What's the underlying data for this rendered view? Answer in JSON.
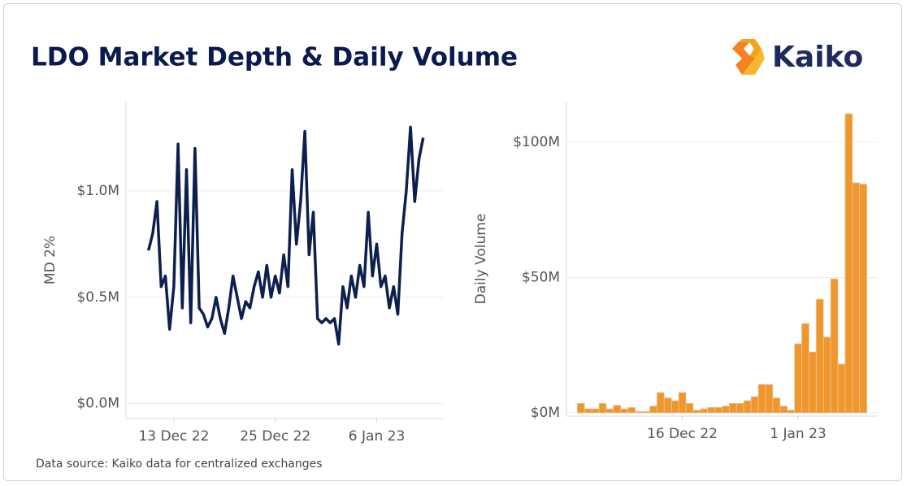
{
  "title": "LDO Market Depth & Daily Volume",
  "logo": "Kaiko",
  "source": "Data source: Kaiko data for centralized exchanges",
  "chart_data": [
    {
      "type": "line",
      "y_label": "MD 2%",
      "color": "#0d1f4f",
      "x": [
        "2022-12-10 00:00",
        "2022-12-10 12:00",
        "2022-12-11 00:00",
        "2022-12-11 12:00",
        "2022-12-12 00:00",
        "2022-12-12 12:00",
        "2022-12-13 00:00",
        "2022-12-13 12:00",
        "2022-12-14 00:00",
        "2022-12-14 12:00",
        "2022-12-15 00:00",
        "2022-12-15 12:00",
        "2022-12-16 00:00",
        "2022-12-16 12:00",
        "2022-12-17 00:00",
        "2022-12-17 12:00",
        "2022-12-18 00:00",
        "2022-12-18 12:00",
        "2022-12-19 00:00",
        "2022-12-19 12:00",
        "2022-12-20 00:00",
        "2022-12-20 12:00",
        "2022-12-21 00:00",
        "2022-12-21 12:00",
        "2022-12-22 00:00",
        "2022-12-22 12:00",
        "2022-12-23 00:00",
        "2022-12-23 12:00",
        "2022-12-24 00:00",
        "2022-12-24 12:00",
        "2022-12-25 00:00",
        "2022-12-25 12:00",
        "2022-12-26 00:00",
        "2022-12-26 12:00",
        "2022-12-27 00:00",
        "2022-12-27 12:00",
        "2022-12-28 00:00",
        "2022-12-28 12:00",
        "2022-12-29 00:00",
        "2022-12-29 12:00",
        "2022-12-30 00:00",
        "2022-12-30 12:00",
        "2022-12-31 00:00",
        "2022-12-31 12:00",
        "2023-01-01 00:00",
        "2023-01-01 12:00",
        "2023-01-02 00:00",
        "2023-01-02 12:00",
        "2023-01-03 00:00",
        "2023-01-03 12:00",
        "2023-01-04 00:00",
        "2023-01-04 12:00",
        "2023-01-05 00:00",
        "2023-01-05 12:00",
        "2023-01-06 00:00",
        "2023-01-06 12:00",
        "2023-01-07 00:00",
        "2023-01-07 12:00",
        "2023-01-08 00:00",
        "2023-01-08 12:00",
        "2023-01-09 00:00",
        "2023-01-09 12:00",
        "2023-01-10 00:00",
        "2023-01-10 12:00",
        "2023-01-11 00:00",
        "2023-01-11 12:00"
      ],
      "values": [
        0.72,
        0.8,
        0.95,
        0.55,
        0.6,
        0.35,
        0.55,
        1.22,
        0.45,
        1.1,
        0.38,
        1.2,
        0.45,
        0.42,
        0.36,
        0.4,
        0.5,
        0.4,
        0.33,
        0.45,
        0.6,
        0.5,
        0.4,
        0.48,
        0.45,
        0.55,
        0.62,
        0.5,
        0.65,
        0.5,
        0.6,
        0.52,
        0.7,
        0.55,
        1.1,
        0.75,
        0.95,
        1.28,
        0.7,
        0.9,
        0.4,
        0.38,
        0.4,
        0.38,
        0.4,
        0.28,
        0.55,
        0.45,
        0.6,
        0.5,
        0.65,
        0.55,
        0.9,
        0.6,
        0.75,
        0.55,
        0.6,
        0.45,
        0.55,
        0.42,
        0.8,
        1.0,
        1.3,
        0.95,
        1.15,
        1.25
      ],
      "xlim": [
        "2022-12-07 08:00",
        "2023-01-13 20:00"
      ],
      "xticks": [
        {
          "value": "2022-12-13 00:00",
          "label": "13 Dec 22"
        },
        {
          "value": "2022-12-25 00:00",
          "label": "25 Dec 22"
        },
        {
          "value": "2023-01-06 00:00",
          "label": "6 Jan 23"
        }
      ],
      "ylim": [
        -0.07,
        1.42
      ],
      "yticks": [
        {
          "value": 0,
          "label": "$0.0M"
        },
        {
          "value": 0.5,
          "label": "$0.5M"
        },
        {
          "value": 1.0,
          "label": "$1.0M"
        }
      ],
      "grid": true
    },
    {
      "type": "bar",
      "y_label": "Daily Volume",
      "color": "#f0962a",
      "x": [
        "2022-12-02",
        "2022-12-03",
        "2022-12-04",
        "2022-12-05",
        "2022-12-06",
        "2022-12-07",
        "2022-12-08",
        "2022-12-09",
        "2022-12-10",
        "2022-12-11",
        "2022-12-12",
        "2022-12-13",
        "2022-12-14",
        "2022-12-15",
        "2022-12-16",
        "2022-12-17",
        "2022-12-18",
        "2022-12-19",
        "2022-12-20",
        "2022-12-21",
        "2022-12-22",
        "2022-12-23",
        "2022-12-24",
        "2022-12-25",
        "2022-12-26",
        "2022-12-27",
        "2022-12-28",
        "2022-12-29",
        "2022-12-30",
        "2022-12-31",
        "2023-01-01",
        "2023-01-02",
        "2023-01-03",
        "2023-01-04",
        "2023-01-05",
        "2023-01-06",
        "2023-01-07",
        "2023-01-08",
        "2023-01-09",
        "2023-01-10"
      ],
      "values": [
        3.5,
        1.5,
        1.5,
        3.5,
        1.5,
        2.8,
        1.5,
        2,
        0.5,
        0.5,
        2.5,
        7.5,
        5.5,
        4.5,
        7.5,
        3.5,
        1,
        1.5,
        2,
        2,
        2.5,
        3.5,
        3.5,
        4.5,
        6,
        10.5,
        10.5,
        5.5,
        2.5,
        1,
        25.5,
        33,
        22.5,
        42,
        28,
        49.5,
        18,
        110.5,
        85,
        84.5
      ],
      "xlim": [
        "2022-11-30",
        "2023-01-12"
      ],
      "xticks": [
        {
          "value": "2022-12-16",
          "label": "16 Dec 22"
        },
        {
          "value": "2023-01-01",
          "label": "1 Jan 23"
        }
      ],
      "ylim": [
        -1.2,
        115
      ],
      "yticks": [
        {
          "value": 0,
          "label": "$0M"
        },
        {
          "value": 50,
          "label": "$50M"
        },
        {
          "value": 100,
          "label": "$100M"
        }
      ],
      "grid": true
    }
  ]
}
